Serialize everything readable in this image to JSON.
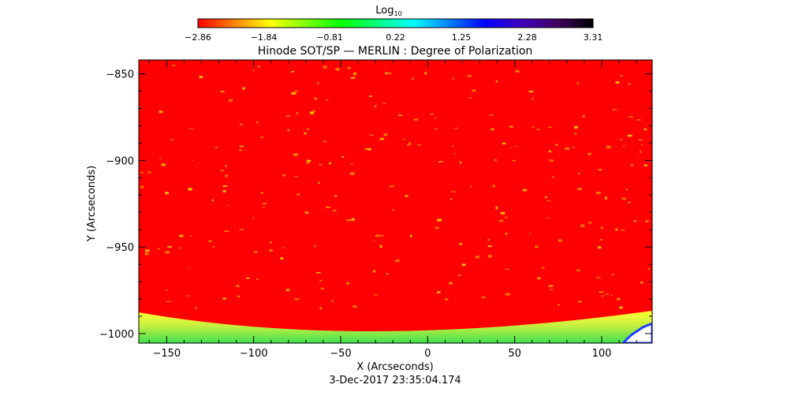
{
  "chart_data": {
    "type": "heatmap",
    "title": "Hinode SOT/SP — MERLIN : Degree of Polarization",
    "xlabel": "X (Arcseconds)",
    "ylabel": "Y (Arcseconds)",
    "timestamp": "3-Dec-2017 23:35:04.174",
    "xlim": [
      -166,
      129
    ],
    "ylim": [
      -1005.5,
      -842
    ],
    "x_ticks": [
      -150,
      -100,
      -50,
      0,
      50,
      100
    ],
    "x_tick_labels": [
      "−150",
      "−100",
      "−50",
      "0",
      "50",
      "100"
    ],
    "y_ticks": [
      -850,
      -900,
      -950,
      -1000
    ],
    "y_tick_labels": [
      "−850",
      "−900",
      "−950",
      "−1000"
    ],
    "colorbar": {
      "label": "Log",
      "label_subscript": "10",
      "range": [
        -2.86,
        3.31
      ],
      "tick_labels": [
        "−2.86",
        "−1.84",
        "−0.81",
        "0.22",
        "1.25",
        "2.28",
        "3.31"
      ],
      "colormap": [
        "#ff0000",
        "#ff8000",
        "#ffff00",
        "#80ff00",
        "#00ff00",
        "#00ff80",
        "#00ffff",
        "#0080ff",
        "#0000ff",
        "#4000c0",
        "#400060",
        "#000000"
      ]
    },
    "colors": {
      "disk": "#ff0000",
      "limb_inner": "#ffff20",
      "limb_outer": "#30e040",
      "off_limb": "#ffffff"
    }
  }
}
